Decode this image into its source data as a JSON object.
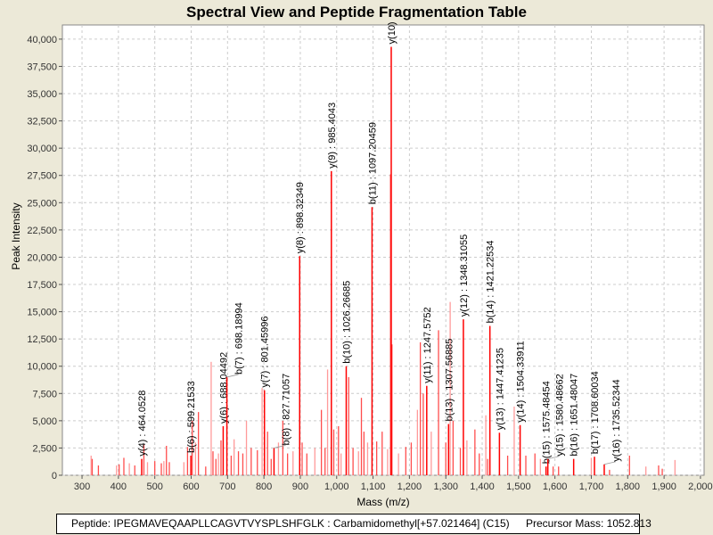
{
  "chart_data": {
    "type": "bar",
    "title": "Spectral View and Peptide Fragmentation Table",
    "xlabel": "Mass (m/z)",
    "ylabel": "Peak Intensity",
    "xlim": [
      246,
      2010
    ],
    "ylim": [
      0,
      41300
    ],
    "x_ticks": [
      "300",
      "400",
      "500",
      "600",
      "700",
      "800",
      "900",
      "1,000",
      "1,100",
      "1,200",
      "1,300",
      "1,400",
      "1,500",
      "1,600",
      "1,700",
      "1,800",
      "1,900",
      "2,000"
    ],
    "y_ticks": [
      "0",
      "2,500",
      "5,000",
      "7,500",
      "10,000",
      "12,500",
      "15,000",
      "17,500",
      "20,000",
      "22,500",
      "25,000",
      "27,500",
      "30,000",
      "32,500",
      "35,000",
      "37,500",
      "40,000"
    ],
    "grid": true,
    "peak_color": "#FF0000",
    "annotated_peaks": [
      {
        "label": "y(4) : 464.0528",
        "mass": 464.0528,
        "intensity": 1500
      },
      {
        "label": "b(6) : 599.21533",
        "mass": 599.21533,
        "intensity": 1800
      },
      {
        "label": "y(6) : 688.04492",
        "mass": 688.04492,
        "intensity": 4500
      },
      {
        "label": "b(7) : 698.18994",
        "mass": 698.18994,
        "intensity": 9000
      },
      {
        "label": "y(7) : 801.45996",
        "mass": 801.45996,
        "intensity": 7800
      },
      {
        "label": "b(8) : 827.71057",
        "mass": 827.71057,
        "intensity": 2500
      },
      {
        "label": "y(8) : 898.32349",
        "mass": 898.32349,
        "intensity": 20100
      },
      {
        "label": "y(9) : 985.4043",
        "mass": 985.4043,
        "intensity": 27900
      },
      {
        "label": "b(10) : 1026.26685",
        "mass": 1026.26685,
        "intensity": 10000
      },
      {
        "label": "b(11) : 1097.20459",
        "mass": 1097.20459,
        "intensity": 24600
      },
      {
        "label": "y(10)",
        "mass": 1150,
        "intensity": 39300
      },
      {
        "label": "y(11) : 1247.5752",
        "mass": 1247.5752,
        "intensity": 8200
      },
      {
        "label": "b(13) : 1307.56885",
        "mass": 1307.56885,
        "intensity": 4700
      },
      {
        "label": "y(12) : 1348.31055",
        "mass": 1348.31055,
        "intensity": 14300
      },
      {
        "label": "b(14) : 1421.22534",
        "mass": 1421.22534,
        "intensity": 13700
      },
      {
        "label": "y(13) : 1447.41235",
        "mass": 1447.41235,
        "intensity": 3900
      },
      {
        "label": "y(14) : 1504.33911",
        "mass": 1504.33911,
        "intensity": 4600
      },
      {
        "label": "b(15) : 1575.48454",
        "mass": 1575.48454,
        "intensity": 800
      },
      {
        "label": "y(15) : 1580.48662",
        "mass": 1580.48662,
        "intensity": 1500
      },
      {
        "label": "b(16) : 1651.48047",
        "mass": 1651.48047,
        "intensity": 1500
      },
      {
        "label": "b(17) : 1708.60034",
        "mass": 1708.60034,
        "intensity": 1700
      },
      {
        "label": "y(16) : 1735.52344",
        "mass": 1735.52344,
        "intensity": 1000
      }
    ],
    "other_peaks": [
      [
        325,
        1800
      ],
      [
        328,
        1500
      ],
      [
        345,
        900
      ],
      [
        395,
        900
      ],
      [
        402,
        1000
      ],
      [
        415,
        1600
      ],
      [
        430,
        1100
      ],
      [
        445,
        900
      ],
      [
        470,
        2800
      ],
      [
        480,
        1200
      ],
      [
        500,
        1300
      ],
      [
        518,
        1100
      ],
      [
        525,
        1300
      ],
      [
        532,
        2700
      ],
      [
        540,
        1200
      ],
      [
        580,
        1200
      ],
      [
        590,
        2600
      ],
      [
        603,
        5000
      ],
      [
        612,
        3000
      ],
      [
        620,
        5800
      ],
      [
        640,
        800
      ],
      [
        655,
        10400
      ],
      [
        660,
        2200
      ],
      [
        668,
        1500
      ],
      [
        675,
        2000
      ],
      [
        682,
        3200
      ],
      [
        710,
        1800
      ],
      [
        718,
        3300
      ],
      [
        730,
        2200
      ],
      [
        742,
        2000
      ],
      [
        752,
        5000
      ],
      [
        765,
        2500
      ],
      [
        782,
        2300
      ],
      [
        795,
        8000
      ],
      [
        810,
        4000
      ],
      [
        820,
        1500
      ],
      [
        840,
        3000
      ],
      [
        852,
        5000
      ],
      [
        865,
        2000
      ],
      [
        880,
        2200
      ],
      [
        905,
        3000
      ],
      [
        918,
        2000
      ],
      [
        940,
        2500
      ],
      [
        958,
        6000
      ],
      [
        968,
        2500
      ],
      [
        975,
        9700
      ],
      [
        992,
        4200
      ],
      [
        1005,
        4500
      ],
      [
        1012,
        2000
      ],
      [
        1033,
        9000
      ],
      [
        1045,
        2500
      ],
      [
        1060,
        2200
      ],
      [
        1068,
        7100
      ],
      [
        1075,
        4000
      ],
      [
        1085,
        3000
      ],
      [
        1110,
        3100
      ],
      [
        1125,
        4000
      ],
      [
        1140,
        2400
      ],
      [
        1148,
        27600
      ],
      [
        1152,
        12000
      ],
      [
        1170,
        2000
      ],
      [
        1190,
        2600
      ],
      [
        1205,
        3000
      ],
      [
        1222,
        6000
      ],
      [
        1230,
        12200
      ],
      [
        1238,
        7500
      ],
      [
        1260,
        4000
      ],
      [
        1280,
        13300
      ],
      [
        1300,
        3000
      ],
      [
        1312,
        15900
      ],
      [
        1320,
        5000
      ],
      [
        1340,
        2500
      ],
      [
        1358,
        3200
      ],
      [
        1380,
        4200
      ],
      [
        1392,
        2000
      ],
      [
        1410,
        5500
      ],
      [
        1415,
        1500
      ],
      [
        1470,
        1800
      ],
      [
        1488,
        6300
      ],
      [
        1520,
        1800
      ],
      [
        1545,
        2000
      ],
      [
        1560,
        1500
      ],
      [
        1595,
        800
      ],
      [
        1610,
        800
      ],
      [
        1700,
        1600
      ],
      [
        1750,
        500
      ],
      [
        1805,
        1800
      ],
      [
        1850,
        800
      ],
      [
        1885,
        900
      ],
      [
        1895,
        600
      ],
      [
        1930,
        1400
      ]
    ],
    "legend": {
      "peptide": "Peptide: IPEGMAVEQAAPLLCAGVTVYSPLSHFGLK : Carbamidomethyl[+57.021464] (C15)",
      "precursor": "Precursor Mass: 1052.813"
    }
  }
}
